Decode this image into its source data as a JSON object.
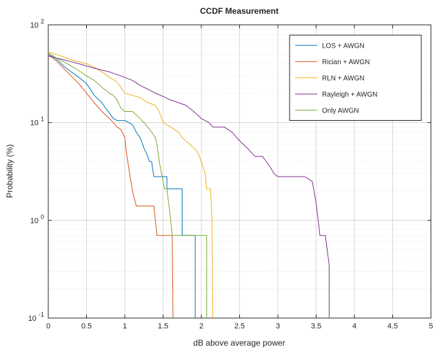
{
  "chart_data": {
    "type": "line",
    "title": "CCDF Measurement",
    "xlabel": "dB above average power",
    "ylabel": "Probability (%)",
    "xlim": [
      0,
      5
    ],
    "ylim": [
      0.1,
      100
    ],
    "yscale": "log",
    "grid": true,
    "minor_grid": true,
    "legend_position": "top-right",
    "x_ticks": [
      0,
      0.5,
      1,
      1.5,
      2,
      2.5,
      3,
      3.5,
      4,
      4.5,
      5
    ],
    "x_tick_labels": [
      "0",
      "0.5",
      "1",
      "1.5",
      "2",
      "2.5",
      "3",
      "3.5",
      "4",
      "4.5",
      "5"
    ],
    "y_ticks": [
      {
        "value": 100,
        "base": "10",
        "exp": "2"
      },
      {
        "value": 10,
        "base": "10",
        "exp": "1"
      },
      {
        "value": 1,
        "base": "10",
        "exp": "0"
      },
      {
        "value": 0.1,
        "base": "10",
        "exp": "-1"
      }
    ],
    "series": [
      {
        "name": "LOS + AWGN",
        "color": "#0072BD",
        "points": [
          [
            0,
            50
          ],
          [
            0.1,
            45
          ],
          [
            0.2,
            38
          ],
          [
            0.3,
            33
          ],
          [
            0.4,
            29
          ],
          [
            0.45,
            27
          ],
          [
            0.5,
            25
          ],
          [
            0.55,
            22
          ],
          [
            0.6,
            19
          ],
          [
            0.7,
            16
          ],
          [
            0.75,
            14
          ],
          [
            0.8,
            12.5
          ],
          [
            0.85,
            11
          ],
          [
            0.9,
            10.5
          ],
          [
            1,
            10.5
          ],
          [
            1.05,
            10
          ],
          [
            1.1,
            9.5
          ],
          [
            1.15,
            8
          ],
          [
            1.2,
            7
          ],
          [
            1.25,
            5.5
          ],
          [
            1.3,
            4.5
          ],
          [
            1.32,
            4
          ],
          [
            1.35,
            4
          ],
          [
            1.38,
            2.8
          ],
          [
            1.55,
            2.8
          ],
          [
            1.55,
            2.1
          ],
          [
            1.75,
            2.1
          ],
          [
            1.75,
            0.7
          ],
          [
            1.92,
            0.7
          ],
          [
            1.92,
            0.1
          ]
        ]
      },
      {
        "name": "Rician + AWGN",
        "color": "#D95319",
        "points": [
          [
            0,
            50
          ],
          [
            0.1,
            43
          ],
          [
            0.2,
            36
          ],
          [
            0.3,
            30
          ],
          [
            0.4,
            25
          ],
          [
            0.5,
            20
          ],
          [
            0.6,
            16
          ],
          [
            0.7,
            13
          ],
          [
            0.8,
            11
          ],
          [
            0.85,
            10
          ],
          [
            0.9,
            9
          ],
          [
            0.95,
            8.5
          ],
          [
            1,
            7
          ],
          [
            1.02,
            5
          ],
          [
            1.05,
            3.5
          ],
          [
            1.07,
            2.8
          ],
          [
            1.1,
            2
          ],
          [
            1.15,
            1.4
          ],
          [
            1.38,
            1.4
          ],
          [
            1.42,
            0.7
          ],
          [
            1.62,
            0.7
          ],
          [
            1.63,
            0.1
          ]
        ]
      },
      {
        "name": "RLN + AWGN",
        "color": "#EDB120",
        "points": [
          [
            0,
            53
          ],
          [
            0.2,
            47
          ],
          [
            0.3,
            44
          ],
          [
            0.4,
            42
          ],
          [
            0.5,
            40
          ],
          [
            0.6,
            37
          ],
          [
            0.7,
            33
          ],
          [
            0.8,
            29
          ],
          [
            0.9,
            26
          ],
          [
            1,
            20
          ],
          [
            1.1,
            19
          ],
          [
            1.2,
            18
          ],
          [
            1.3,
            16
          ],
          [
            1.4,
            15
          ],
          [
            1.45,
            13
          ],
          [
            1.5,
            10
          ],
          [
            1.6,
            9
          ],
          [
            1.7,
            8
          ],
          [
            1.75,
            7
          ],
          [
            1.85,
            6
          ],
          [
            1.9,
            5.5
          ],
          [
            1.95,
            5
          ],
          [
            2,
            4
          ],
          [
            2.05,
            3
          ],
          [
            2.07,
            2.1
          ],
          [
            2.12,
            2.1
          ],
          [
            2.14,
            1
          ],
          [
            2.15,
            0.1
          ]
        ]
      },
      {
        "name": "Rayleigh + AWGN",
        "color": "#7E2F8E",
        "points": [
          [
            0,
            48
          ],
          [
            0.2,
            44
          ],
          [
            0.4,
            40
          ],
          [
            0.6,
            36
          ],
          [
            0.8,
            33
          ],
          [
            1,
            29
          ],
          [
            1.1,
            27
          ],
          [
            1.2,
            24
          ],
          [
            1.3,
            22
          ],
          [
            1.4,
            20
          ],
          [
            1.5,
            18.5
          ],
          [
            1.6,
            17
          ],
          [
            1.7,
            16
          ],
          [
            1.8,
            15
          ],
          [
            1.9,
            13
          ],
          [
            2,
            11
          ],
          [
            2.1,
            10
          ],
          [
            2.15,
            9
          ],
          [
            2.3,
            9
          ],
          [
            2.4,
            8
          ],
          [
            2.5,
            6.5
          ],
          [
            2.6,
            5.5
          ],
          [
            2.7,
            4.5
          ],
          [
            2.8,
            4.5
          ],
          [
            2.9,
            3.5
          ],
          [
            2.95,
            3
          ],
          [
            3,
            2.8
          ],
          [
            3.35,
            2.8
          ],
          [
            3.45,
            2.5
          ],
          [
            3.5,
            1.5
          ],
          [
            3.55,
            0.7
          ],
          [
            3.62,
            0.7
          ],
          [
            3.67,
            0.35
          ],
          [
            3.67,
            0.1
          ]
        ]
      },
      {
        "name": "Only AWGN",
        "color": "#77AC30",
        "points": [
          [
            0,
            52
          ],
          [
            0.1,
            46
          ],
          [
            0.2,
            42
          ],
          [
            0.3,
            38
          ],
          [
            0.4,
            34
          ],
          [
            0.5,
            30
          ],
          [
            0.6,
            27
          ],
          [
            0.7,
            23
          ],
          [
            0.8,
            20
          ],
          [
            0.85,
            19
          ],
          [
            0.9,
            17
          ],
          [
            0.95,
            14
          ],
          [
            1,
            13
          ],
          [
            1.1,
            13
          ],
          [
            1.15,
            12
          ],
          [
            1.2,
            11
          ],
          [
            1.25,
            10
          ],
          [
            1.3,
            9
          ],
          [
            1.35,
            8
          ],
          [
            1.4,
            7
          ],
          [
            1.42,
            6
          ],
          [
            1.45,
            4
          ],
          [
            1.48,
            3
          ],
          [
            1.5,
            2.5
          ],
          [
            1.52,
            2.1
          ],
          [
            1.55,
            2.1
          ],
          [
            1.6,
            1
          ],
          [
            1.62,
            0.7
          ],
          [
            2.07,
            0.7
          ],
          [
            2.07,
            0.1
          ]
        ]
      }
    ]
  }
}
